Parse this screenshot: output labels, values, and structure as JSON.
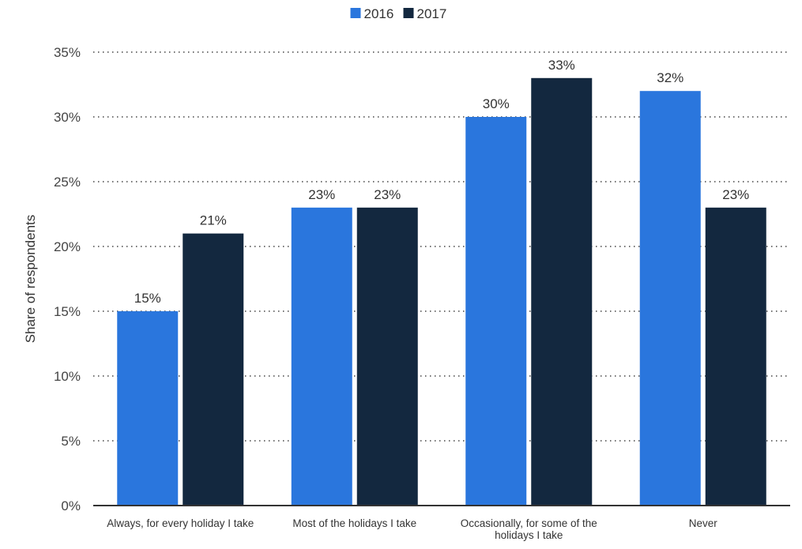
{
  "chart_data": {
    "type": "bar",
    "categories": [
      [
        "Always, for every holiday I take"
      ],
      [
        "Most of the holidays I take"
      ],
      [
        "Occasionally, for some of the",
        "holidays I take"
      ],
      [
        "Never"
      ]
    ],
    "series": [
      {
        "name": "2016",
        "color": "#2a76dd",
        "values": [
          15,
          23,
          30,
          32
        ]
      },
      {
        "name": "2017",
        "color": "#13283f",
        "values": [
          21,
          23,
          33,
          23
        ]
      }
    ],
    "value_labels": [
      [
        "15%",
        "23%",
        "30%",
        "32%"
      ],
      [
        "21%",
        "23%",
        "33%",
        "23%"
      ]
    ],
    "ylabel": "Share of respondents",
    "ylim": [
      0,
      35
    ],
    "yticks": [
      0,
      5,
      10,
      15,
      20,
      25,
      30,
      35
    ],
    "ytick_labels": [
      "0%",
      "5%",
      "10%",
      "15%",
      "20%",
      "25%",
      "30%",
      "35%"
    ],
    "grid": true,
    "legend_position": "top-center"
  }
}
